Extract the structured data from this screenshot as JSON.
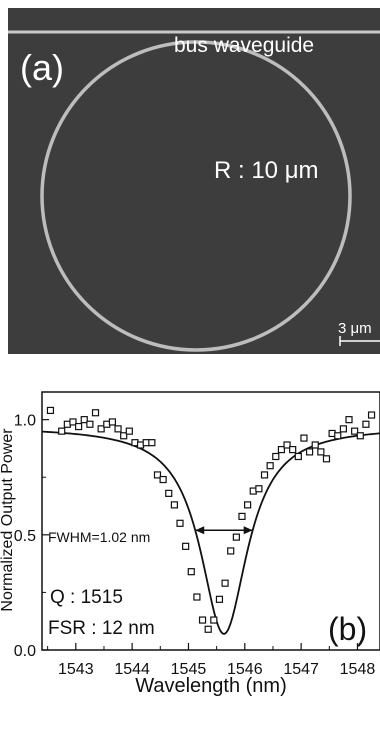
{
  "panel_a": {
    "label": "(a)",
    "waveguide_label": "bus waveguide",
    "radius_label": "R : 10 μm",
    "scale_label": "3 μm",
    "colors": {
      "background": "#3d3d3d",
      "ring": "#bdbdbd",
      "text": "#ffffff"
    }
  },
  "chart_data": {
    "type": "scatter",
    "panel_label": "(b)",
    "xlabel": "Wavelength (nm)",
    "ylabel": "Normalized Output Power",
    "xlim": [
      1542.4,
      1548.4
    ],
    "ylim": [
      0.0,
      1.12
    ],
    "x_ticks": [
      1543,
      1544,
      1545,
      1546,
      1547,
      1548
    ],
    "x_tick_labels": [
      "1543",
      "1544",
      "1545",
      "1546",
      "1547",
      "1548"
    ],
    "y_ticks": [
      0.0,
      0.5,
      1.0
    ],
    "y_tick_labels": [
      "0.0",
      "0.5",
      "1.0"
    ],
    "annotations": {
      "fwhm": "FWHM=1.02 nm",
      "q": "Q : 1515",
      "fsr": "FSR : 12 nm"
    },
    "fit": {
      "center": 1545.63,
      "fwhm": 1.02,
      "baseline": 0.97,
      "min": 0.07
    },
    "series": [
      {
        "marker": "open-square",
        "x": [
          1542.55,
          1542.75,
          1542.85,
          1542.95,
          1543.05,
          1543.15,
          1543.25,
          1543.35,
          1543.45,
          1543.55,
          1543.65,
          1543.75,
          1543.85,
          1543.95,
          1544.05,
          1544.15,
          1544.25,
          1544.35,
          1544.45,
          1544.55,
          1544.65,
          1544.75,
          1544.85,
          1544.95,
          1545.05,
          1545.15,
          1545.25,
          1545.35,
          1545.45,
          1545.55,
          1545.65,
          1545.75,
          1545.85,
          1545.95,
          1546.05,
          1546.15,
          1546.25,
          1546.35,
          1546.45,
          1546.55,
          1546.65,
          1546.75,
          1546.85,
          1546.95,
          1547.05,
          1547.15,
          1547.25,
          1547.35,
          1547.45,
          1547.55,
          1547.65,
          1547.75,
          1547.85,
          1547.95,
          1548.05,
          1548.15,
          1548.25
        ],
        "y": [
          1.04,
          0.95,
          0.98,
          0.99,
          0.97,
          1.0,
          0.98,
          1.03,
          0.96,
          0.98,
          0.99,
          0.96,
          0.93,
          0.95,
          0.9,
          0.89,
          0.9,
          0.9,
          0.76,
          0.74,
          0.68,
          0.63,
          0.55,
          0.45,
          0.34,
          0.23,
          0.13,
          0.09,
          0.13,
          0.22,
          0.29,
          0.43,
          0.49,
          0.58,
          0.63,
          0.69,
          0.7,
          0.76,
          0.8,
          0.84,
          0.87,
          0.89,
          0.87,
          0.84,
          0.92,
          0.86,
          0.89,
          0.86,
          0.83,
          0.94,
          0.93,
          0.96,
          1.0,
          0.95,
          0.93,
          0.98,
          1.02
        ]
      }
    ]
  }
}
